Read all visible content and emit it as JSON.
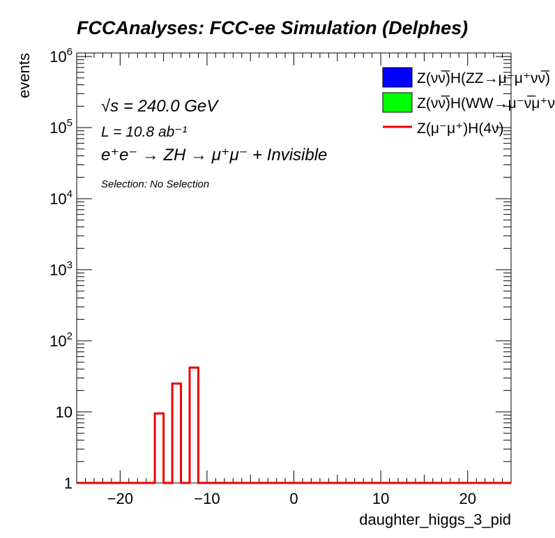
{
  "chart_data": {
    "type": "bar",
    "title": "FCCAnalyses: FCC-ee Simulation (Delphes)",
    "xlabel": "daughter_higgs_3_pid",
    "ylabel": "events",
    "xlim": [
      -25,
      25
    ],
    "ylim": [
      1,
      1000000
    ],
    "yscale": "log",
    "x_ticks": [
      -20,
      -10,
      0,
      10,
      20
    ],
    "x_tick_labels": [
      "−20",
      "−10",
      "0",
      "10",
      "20"
    ],
    "y_ticks": [
      1,
      10,
      100,
      1000,
      10000,
      100000,
      1000000
    ],
    "y_tick_labels": [
      {
        "base": "1",
        "exp": ""
      },
      {
        "base": "10",
        "exp": ""
      },
      {
        "base": "10",
        "exp": "2"
      },
      {
        "base": "10",
        "exp": "3"
      },
      {
        "base": "10",
        "exp": "4"
      },
      {
        "base": "10",
        "exp": "5"
      },
      {
        "base": "10",
        "exp": "6"
      }
    ],
    "bins": [
      {
        "x_low": -16,
        "x_high": -15,
        "value": 9.5
      },
      {
        "x_low": -14,
        "x_high": -13,
        "value": 25
      },
      {
        "x_low": -12,
        "x_high": -11,
        "value": 42
      }
    ],
    "series": [
      {
        "name": "Z(νν̅)H(ZZ→μ⁻μ⁺νν̅)",
        "color": "#0000ff",
        "style": "filled-box"
      },
      {
        "name": "Z(νν̅)H(WW→μ⁻ν̅μ⁺ν)",
        "color": "#00ff00",
        "style": "filled-box"
      },
      {
        "name": "Z(μ⁻μ⁺)H(4ν)",
        "color": "#ff0000",
        "style": "line"
      }
    ],
    "legend_position": "top-right",
    "grid": false
  },
  "annotations": {
    "energy": "√s = 240.0 GeV",
    "lumi": "L = 10.8 ab⁻¹",
    "process": "e⁺e⁻ → ZH → μ⁺μ⁻ + Invisible",
    "selection": "Selection: No Selection"
  },
  "colors": {
    "line": "#ee0000",
    "axis": "#000000"
  }
}
